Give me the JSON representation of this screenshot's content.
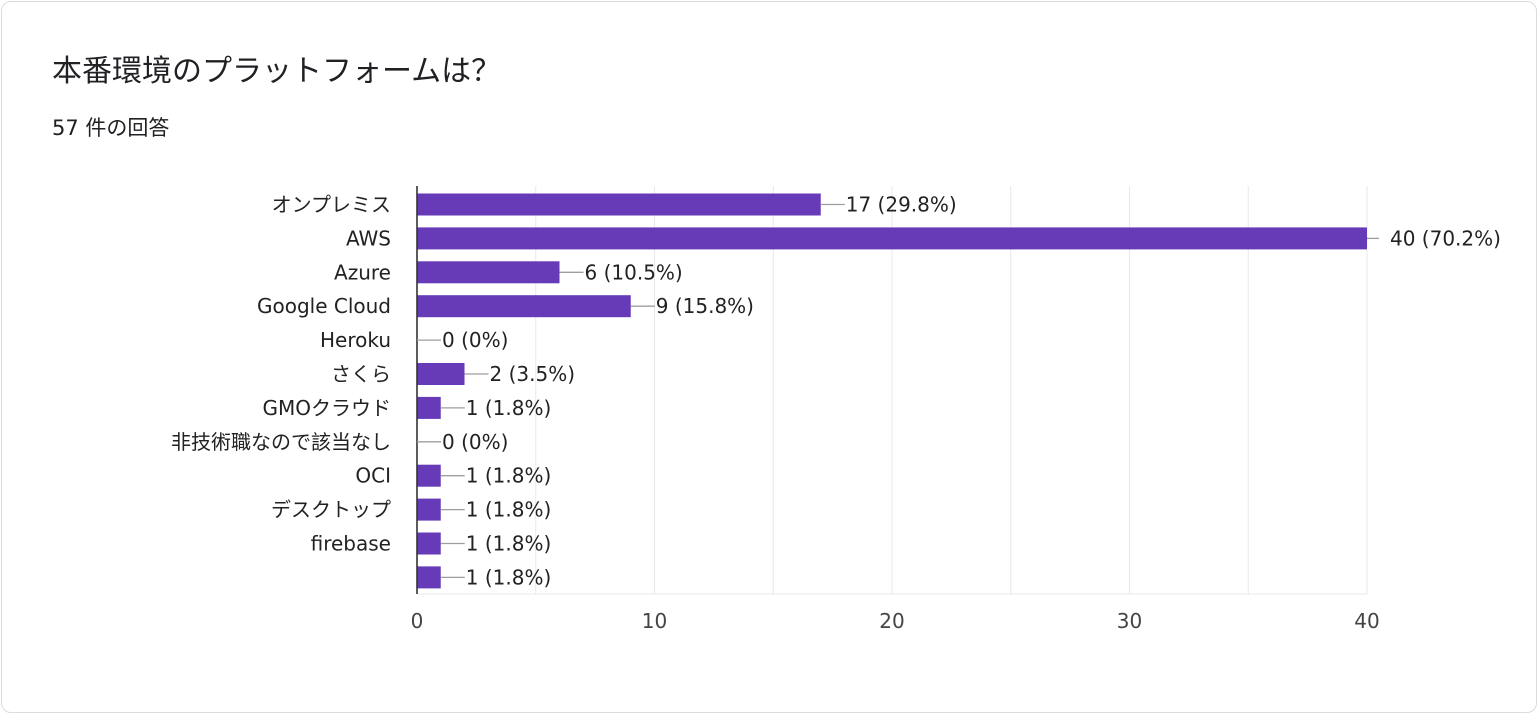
{
  "header": {
    "title": "本番環境のプラットフォームは？",
    "subtitle": "57 件の回答"
  },
  "colors": {
    "bar": "#673ab7",
    "grid": "#e8e8e8",
    "axis": "#333333",
    "leader": "#9e9e9e"
  },
  "chart_data": {
    "type": "bar",
    "orientation": "horizontal",
    "title": "本番環境のプラットフォームは？",
    "subtitle": "57 件の回答",
    "categories": [
      "オンプレミス",
      "AWS",
      "Azure",
      "Google Cloud",
      "Heroku",
      "さくら",
      "GMOクラウド",
      "非技術職なので該当なし",
      "OCI",
      "デスクトップ",
      "firebase",
      ""
    ],
    "values": [
      17,
      40,
      6,
      9,
      0,
      2,
      1,
      0,
      1,
      1,
      1,
      1
    ],
    "data_labels": [
      "17 (29.8%)",
      "40 (70.2%)",
      "6 (10.5%)",
      "9 (15.8%)",
      "0 (0%)",
      "2 (3.5%)",
      "1 (1.8%)",
      "0 (0%)",
      "1 (1.8%)",
      "1 (1.8%)",
      "1 (1.8%)",
      "1 (1.8%)"
    ],
    "xlim": [
      0,
      40
    ],
    "xticks": [
      0,
      10,
      20,
      30,
      40
    ],
    "grid": true,
    "legend": "none"
  }
}
